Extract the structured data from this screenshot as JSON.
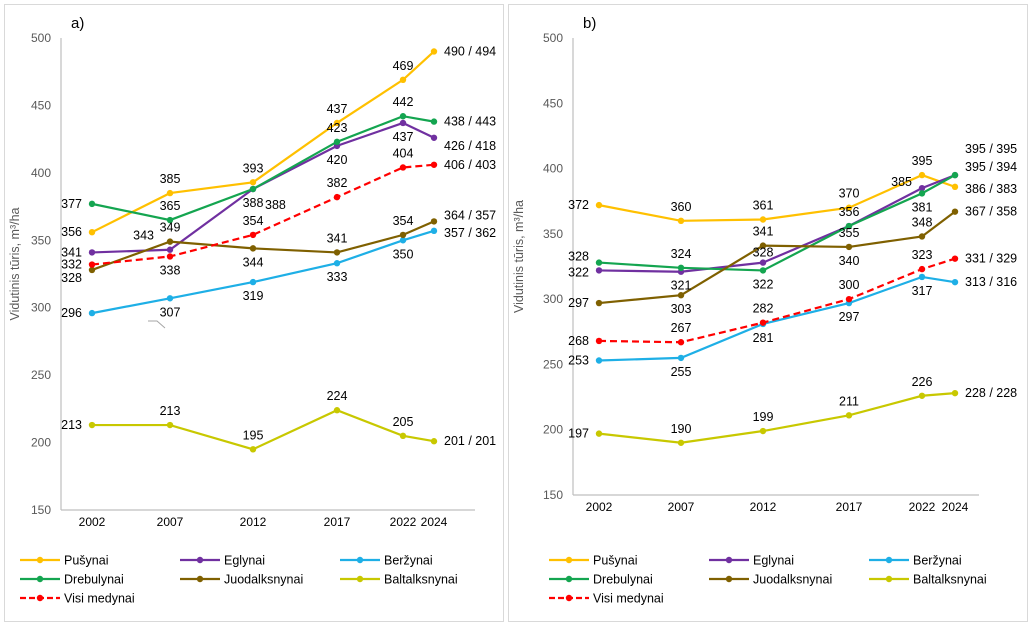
{
  "chart_data": [
    {
      "type": "line",
      "panel_label": "a)",
      "ylabel": "Vidutinis tūris, m³/ha",
      "xlabel": "",
      "x": [
        2002,
        2007,
        2012,
        2017,
        2022,
        2024
      ],
      "x_tick_labels": [
        "2002",
        "2007",
        "2012",
        "2017",
        "2022",
        "2024"
      ],
      "ylim": [
        150,
        500
      ],
      "y_ticks": [
        150,
        200,
        250,
        300,
        350,
        400,
        450,
        500
      ],
      "grid": false,
      "legend_position": "bottom",
      "series": [
        {
          "name": "Pušynai",
          "color": "#FFC000",
          "dashed": false,
          "values": [
            356,
            385,
            393,
            437,
            469,
            490
          ],
          "labels": [
            "356",
            "385",
            "393",
            "437",
            "469",
            "490 / 494"
          ]
        },
        {
          "name": "Eglynai",
          "color": "#7030A0",
          "dashed": false,
          "values": [
            341,
            343,
            388,
            420,
            437,
            426
          ],
          "labels": [
            "341",
            "343",
            "388",
            "420",
            "437",
            "426 / 418"
          ]
        },
        {
          "name": "Beržynai",
          "color": "#1EAFE6",
          "dashed": false,
          "values": [
            296,
            307,
            319,
            333,
            350,
            357
          ],
          "labels": [
            "296",
            "307",
            "319",
            "333",
            "350",
            "357 / 362"
          ]
        },
        {
          "name": "Drebulynai",
          "color": "#14A550",
          "dashed": false,
          "values": [
            377,
            365,
            388,
            423,
            442,
            438
          ],
          "labels": [
            "377",
            "365",
            "388",
            "423",
            "442",
            "438 / 443"
          ]
        },
        {
          "name": "Juodalksnynai",
          "color": "#7F6000",
          "dashed": false,
          "values": [
            328,
            349,
            344,
            341,
            354,
            364
          ],
          "labels": [
            "328",
            "349",
            "344",
            "341",
            "354",
            "364 / 357"
          ]
        },
        {
          "name": "Baltalksnynai",
          "color": "#C8C800",
          "dashed": false,
          "values": [
            213,
            213,
            195,
            224,
            205,
            201
          ],
          "labels": [
            "213",
            "213",
            "195",
            "224",
            "205",
            "201 / 201"
          ]
        },
        {
          "name": "Visi medynai",
          "color": "#FF0000",
          "dashed": true,
          "values": [
            332,
            338,
            354,
            382,
            404,
            406
          ],
          "labels": [
            "332",
            "338",
            "354",
            "382",
            "404",
            "406 / 403"
          ]
        }
      ]
    },
    {
      "type": "line",
      "panel_label": "b)",
      "ylabel": "Vidutinis tūris, m³/ha",
      "xlabel": "",
      "x": [
        2002,
        2007,
        2012,
        2017,
        2022,
        2024
      ],
      "x_tick_labels": [
        "2002",
        "2007",
        "2012",
        "2017",
        "2022",
        "2024"
      ],
      "ylim": [
        150,
        500
      ],
      "y_ticks": [
        150,
        200,
        250,
        300,
        350,
        400,
        450,
        500
      ],
      "grid": false,
      "legend_position": "bottom",
      "series": [
        {
          "name": "Pušynai",
          "color": "#FFC000",
          "dashed": false,
          "values": [
            372,
            360,
            361,
            370,
            395,
            386
          ],
          "labels": [
            "372",
            "360",
            "361",
            "370",
            "395",
            "386 / 383"
          ]
        },
        {
          "name": "Eglynai",
          "color": "#7030A0",
          "dashed": false,
          "values": [
            322,
            321,
            328,
            356,
            385,
            395
          ],
          "labels": [
            "322",
            "321",
            "328",
            "",
            "385",
            "395 / 395"
          ]
        },
        {
          "name": "Beržynai",
          "color": "#1EAFE6",
          "dashed": false,
          "values": [
            253,
            255,
            281,
            297,
            317,
            313
          ],
          "labels": [
            "253",
            "255",
            "281",
            "297",
            "317",
            "313 / 316"
          ]
        },
        {
          "name": "Drebulynai",
          "color": "#14A550",
          "dashed": false,
          "values": [
            328,
            324,
            322,
            356,
            381,
            395
          ],
          "labels": [
            "328",
            "324",
            "322",
            "356",
            "381",
            "395 / 394"
          ]
        },
        {
          "name": "Juodalksnynai",
          "color": "#7F6000",
          "dashed": false,
          "values": [
            297,
            303,
            341,
            340,
            348,
            367
          ],
          "labels": [
            "297",
            "303",
            "341",
            "340",
            "348",
            "367 / 358"
          ]
        },
        {
          "name": "Baltalksnynai",
          "color": "#C8C800",
          "dashed": false,
          "values": [
            197,
            190,
            199,
            211,
            226,
            228
          ],
          "labels": [
            "197",
            "190",
            "199",
            "211",
            "226",
            "228 / 228"
          ]
        },
        {
          "name": "Visi medynai",
          "color": "#FF0000",
          "dashed": true,
          "values": [
            268,
            267,
            282,
            300,
            323,
            331
          ],
          "labels": [
            "268",
            "267",
            "282",
            "300",
            "323",
            "331 / 329"
          ]
        }
      ],
      "extra_annotations": [
        {
          "text": "355",
          "x": 2017,
          "series": "Juodalksnynai-area"
        }
      ]
    }
  ]
}
